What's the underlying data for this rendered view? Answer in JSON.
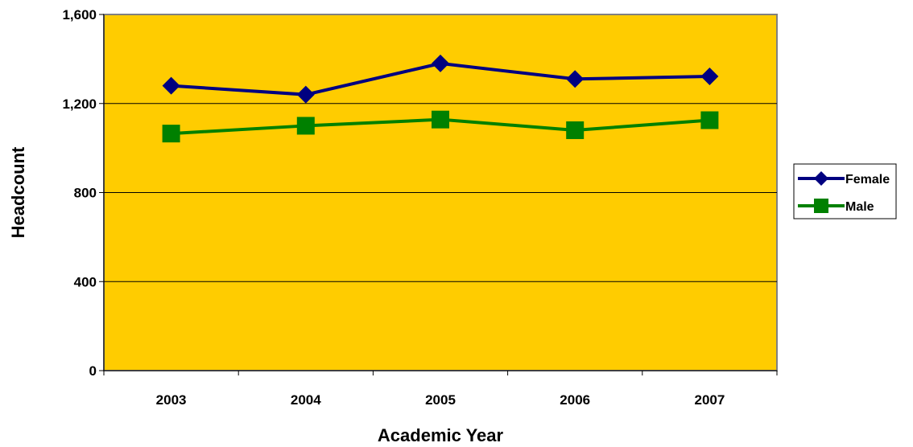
{
  "chart_data": {
    "type": "line",
    "categories": [
      "2003",
      "2004",
      "2005",
      "2006",
      "2007"
    ],
    "series": [
      {
        "name": "Female",
        "values": [
          1280,
          1240,
          1380,
          1310,
          1322
        ],
        "color": "#000080",
        "marker": "diamond"
      },
      {
        "name": "Male",
        "values": [
          1065,
          1100,
          1128,
          1080,
          1125
        ],
        "color": "#008000",
        "marker": "square"
      }
    ],
    "xlabel": "Academic Year",
    "ylabel": "Headcount",
    "ylim": [
      0,
      1600
    ],
    "yticks": [
      0,
      400,
      800,
      1200,
      1600
    ],
    "ytick_labels": [
      "0",
      "400",
      "800",
      "1,200",
      "1,600"
    ],
    "grid": true,
    "legend_position": "right",
    "plot_background": "#FFCC00"
  }
}
